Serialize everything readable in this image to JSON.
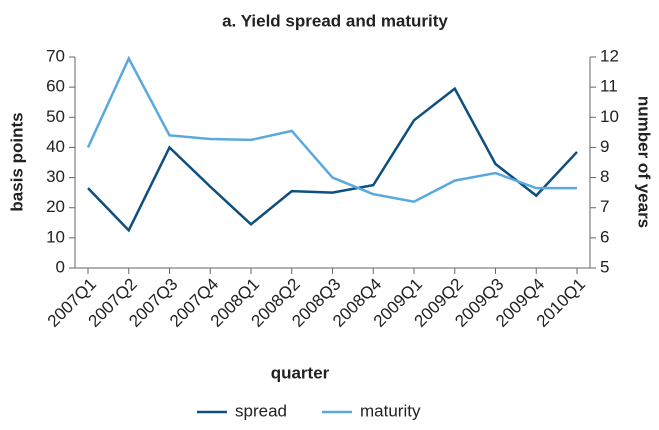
{
  "chart_data": {
    "type": "line",
    "title": "a. Yield spread and maturity",
    "x_label": "quarter",
    "y_label": "basis points",
    "y2_label": "number of years",
    "categories": [
      "2007Q1",
      "2007Q2",
      "2007Q3",
      "2007Q4",
      "2008Q1",
      "2008Q2",
      "2008Q3",
      "2008Q4",
      "2009Q1",
      "2009Q2",
      "2009Q3",
      "2009Q4",
      "2010Q1"
    ],
    "series": [
      {
        "name": "spread",
        "color": "#0d4f7f",
        "values": [
          26.5,
          12.5,
          40,
          27,
          14.5,
          25.5,
          25,
          27.5,
          49,
          59.5,
          34.5,
          24,
          38.5
        ]
      },
      {
        "name": "maturity",
        "color": "#5aa9dd",
        "axis": "y2",
        "values": [
          9.0,
          11.95,
          9.4,
          9.28,
          9.25,
          9.55,
          8.0,
          7.45,
          7.2,
          7.9,
          8.15,
          7.65,
          7.65
        ]
      }
    ],
    "ylim": [
      0,
      70
    ],
    "yticks": [
      0,
      10,
      20,
      30,
      40,
      50,
      60,
      70
    ],
    "y2lim": [
      5,
      12
    ],
    "y2ticks": [
      5,
      6,
      7,
      8,
      9,
      10,
      11,
      12
    ],
    "legend": "bottom"
  }
}
